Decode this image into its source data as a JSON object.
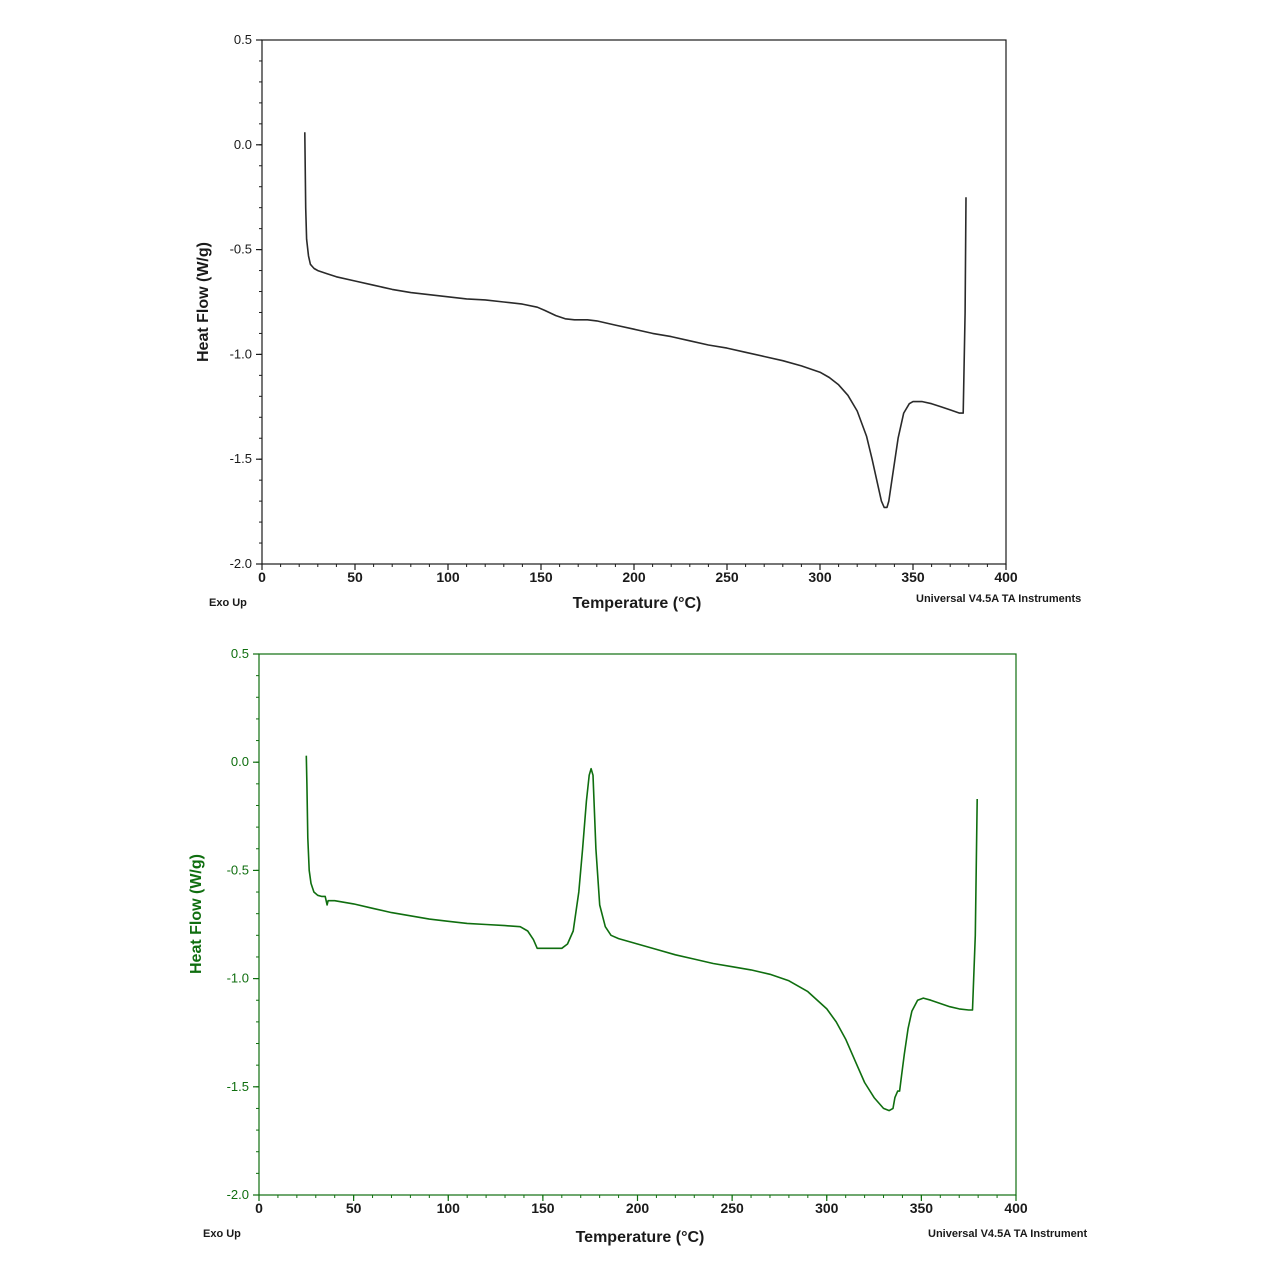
{
  "chart_data": [
    {
      "type": "line",
      "title": "",
      "xlabel": "Temperature (°C)",
      "ylabel": "Heat Flow (W/g)",
      "xlim": [
        0,
        400
      ],
      "ylim": [
        -2.0,
        0.5
      ],
      "x_ticks": [
        "0",
        "50",
        "100",
        "150",
        "200",
        "250",
        "300",
        "350",
        "400"
      ],
      "y_ticks": [
        "0.5",
        "0.0",
        "-0.5",
        "-1.0",
        "-1.5",
        "-2.0"
      ],
      "grid": false,
      "footer_left": "Exo Up",
      "footer_right": "Universal V4.5A TA Instruments",
      "color": "#2a2a2a",
      "axis_color": "#1a1a1a",
      "series": [
        {
          "x": [
            23,
            23.5,
            24,
            25,
            26,
            27,
            28,
            29,
            30,
            35,
            40,
            50,
            60,
            70,
            80,
            90,
            100,
            110,
            120,
            130,
            140,
            148,
            152,
            158,
            163,
            168,
            175,
            180,
            190,
            200,
            210,
            220,
            230,
            240,
            250,
            260,
            270,
            280,
            290,
            300,
            305,
            310,
            315,
            320,
            325,
            328,
            331,
            333,
            334.5,
            336,
            337,
            339,
            342,
            345,
            348,
            350,
            355,
            360,
            365,
            370,
            375,
            377,
            378,
            378.5
          ],
          "y": [
            0.06,
            -0.3,
            -0.45,
            -0.53,
            -0.57,
            -0.58,
            -0.59,
            -0.595,
            -0.6,
            -0.615,
            -0.63,
            -0.65,
            -0.67,
            -0.69,
            -0.705,
            -0.715,
            -0.725,
            -0.735,
            -0.74,
            -0.75,
            -0.76,
            -0.775,
            -0.79,
            -0.815,
            -0.83,
            -0.835,
            -0.835,
            -0.84,
            -0.86,
            -0.88,
            -0.9,
            -0.915,
            -0.935,
            -0.955,
            -0.97,
            -0.99,
            -1.01,
            -1.03,
            -1.055,
            -1.085,
            -1.11,
            -1.145,
            -1.195,
            -1.27,
            -1.39,
            -1.5,
            -1.62,
            -1.7,
            -1.73,
            -1.73,
            -1.7,
            -1.58,
            -1.4,
            -1.28,
            -1.235,
            -1.225,
            -1.225,
            -1.235,
            -1.25,
            -1.265,
            -1.28,
            -1.28,
            -0.8,
            -0.25
          ]
        }
      ]
    },
    {
      "type": "line",
      "title": "",
      "xlabel": "Temperature (°C)",
      "ylabel": "Heat Flow (W/g)",
      "xlim": [
        0,
        400
      ],
      "ylim": [
        -2.0,
        0.5
      ],
      "x_ticks": [
        "0",
        "50",
        "100",
        "150",
        "200",
        "250",
        "300",
        "350",
        "400"
      ],
      "y_ticks": [
        "0.5",
        "0.0",
        "-0.5",
        "-1.0",
        "-1.5",
        "-2.0"
      ],
      "grid": false,
      "footer_left": "Exo Up",
      "footer_right": "Universal V4.5A TA Instrument",
      "color": "#0f6e0f",
      "axis_color": "#0f6e0f",
      "series": [
        {
          "x": [
            25,
            25.3,
            25.8,
            26.5,
            27.5,
            29,
            31,
            33,
            35,
            36,
            36.5,
            37,
            40,
            50,
            60,
            70,
            80,
            90,
            100,
            110,
            120,
            130,
            138,
            142,
            145,
            147,
            150,
            155,
            160,
            163,
            166,
            169,
            171,
            173,
            174.5,
            175.5,
            176.5,
            178,
            180,
            183,
            186,
            190,
            200,
            210,
            220,
            230,
            240,
            250,
            260,
            270,
            280,
            290,
            300,
            305,
            310,
            315,
            320,
            325,
            330,
            333,
            335,
            336,
            337.5,
            338.5,
            339.5,
            341,
            343,
            345,
            348,
            351,
            355,
            360,
            365,
            370,
            375,
            377,
            378.5,
            379.5
          ],
          "y": [
            0.03,
            -0.1,
            -0.35,
            -0.5,
            -0.56,
            -0.6,
            -0.615,
            -0.62,
            -0.62,
            -0.66,
            -0.64,
            -0.64,
            -0.64,
            -0.655,
            -0.675,
            -0.695,
            -0.71,
            -0.725,
            -0.735,
            -0.745,
            -0.75,
            -0.755,
            -0.76,
            -0.78,
            -0.82,
            -0.86,
            -0.86,
            -0.86,
            -0.86,
            -0.84,
            -0.78,
            -0.6,
            -0.4,
            -0.18,
            -0.06,
            -0.03,
            -0.06,
            -0.4,
            -0.66,
            -0.76,
            -0.8,
            -0.815,
            -0.84,
            -0.865,
            -0.89,
            -0.91,
            -0.93,
            -0.945,
            -0.96,
            -0.98,
            -1.01,
            -1.06,
            -1.14,
            -1.2,
            -1.28,
            -1.38,
            -1.48,
            -1.55,
            -1.6,
            -1.61,
            -1.6,
            -1.55,
            -1.52,
            -1.52,
            -1.45,
            -1.35,
            -1.23,
            -1.15,
            -1.1,
            -1.09,
            -1.1,
            -1.115,
            -1.13,
            -1.14,
            -1.145,
            -1.145,
            -0.8,
            -0.17
          ]
        }
      ]
    }
  ]
}
